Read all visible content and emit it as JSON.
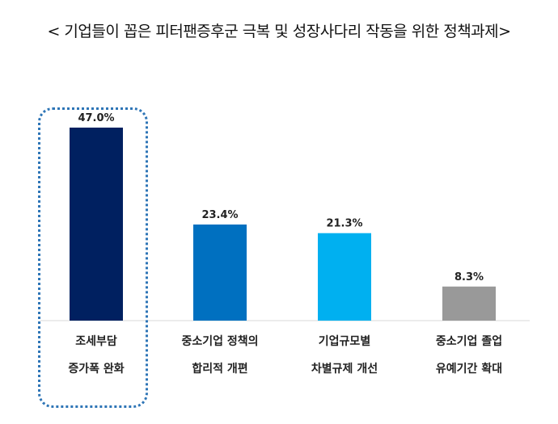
{
  "chart_data": {
    "type": "bar",
    "title": "< 기업들이 꼽은 피터팬증후군 극복 및 성장사다리 작동을 위한 정책과제>",
    "categories": [
      [
        "조세부담",
        "증가폭 완화"
      ],
      [
        "중소기업 정책의",
        "합리적 개편"
      ],
      [
        "기업규모별",
        "차별규제 개선"
      ],
      [
        "중소기업 졸업",
        "유예기간 확대"
      ]
    ],
    "values": [
      47.0,
      23.4,
      21.3,
      8.3
    ],
    "value_labels": [
      "47.0%",
      "23.4%",
      "21.3%",
      "8.3%"
    ],
    "colors": [
      "#002060",
      "#0070c0",
      "#00b0f0",
      "#999999"
    ],
    "highlighted_index": 0,
    "unit": "%",
    "ylim": [
      0,
      50
    ],
    "grid": false,
    "legend": "none"
  }
}
